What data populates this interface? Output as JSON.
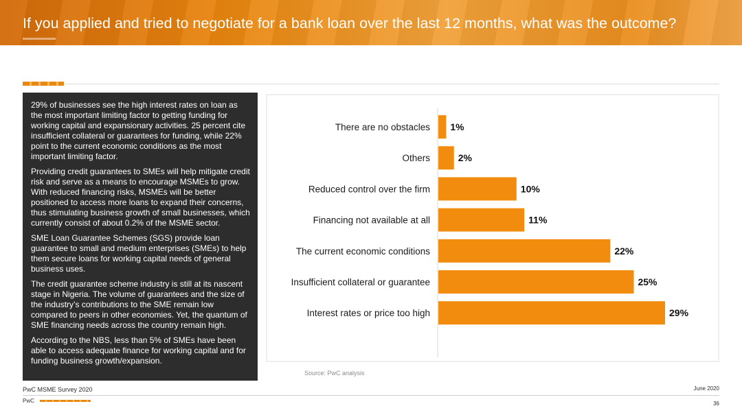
{
  "header": {
    "title": "If you applied and tried to negotiate for a bank loan over the last 12 months, what was the outcome?"
  },
  "panel": {
    "paragraphs": [
      "29% of businesses see the high interest rates on loan as the most important limiting factor to getting funding for working capital and expansionary activities. 25 percent cite insufficient collateral or guarantees for funding, while 22% point to the current economic conditions as the most important limiting factor.",
      "Providing credit guarantees to SMEs will help mitigate credit risk and serve as a means to encourage MSMEs to grow.  With reduced financing risks, MSMEs will be better positioned to access more loans to expand their concerns, thus stimulating business growth of small businesses, which currently consist of about 0.2% of the MSME sector.",
      "SME Loan Guarantee Schemes (SGS) provide loan guarantee to small and medium enterprises (SMEs) to help them secure loans for working capital needs of general business uses.",
      "The credit guarantee scheme industry is still at its nascent stage in Nigeria. The volume of guarantees and the size of the industry’s contributions to the SME remain low compared to peers in other economies. Yet, the quantum of SME financing needs across the country remain high.",
      "According to the NBS, less than 5% of SMEs have been able to access adequate finance for working capital and for funding business growth/expansion."
    ]
  },
  "chart_data": {
    "type": "bar",
    "orientation": "horizontal",
    "categories": [
      "There are no obstacles",
      "Others",
      "Reduced control over the firm",
      "Financing not available at all",
      "The current economic conditions",
      "Insufficient collateral or guarantee",
      "Interest rates or price too high"
    ],
    "values": [
      1,
      2,
      10,
      11,
      22,
      25,
      29
    ],
    "value_labels": [
      "1%",
      "2%",
      "10%",
      "11%",
      "22%",
      "25%",
      "29%"
    ],
    "xlim": [
      0,
      29
    ],
    "bar_color": "#f28c0f",
    "grid": false,
    "legend": "none"
  },
  "source": "Source: PwC analysis",
  "footer": {
    "left": "PwC MSME Survey 2020",
    "right": "June 2020",
    "brand": "PwC",
    "page_number": "36"
  }
}
